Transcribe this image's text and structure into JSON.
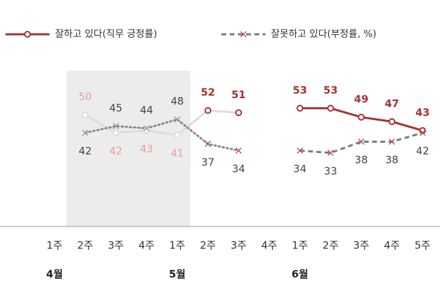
{
  "chart_data": {
    "type": "line",
    "categories": [
      "1주",
      "2주",
      "3주",
      "4주",
      "1주",
      "2주",
      "3주",
      "4주",
      "1주",
      "2주",
      "3주",
      "4주",
      "5주"
    ],
    "months": [
      "4월",
      null,
      null,
      null,
      "5월",
      null,
      null,
      null,
      "6월",
      null,
      null,
      null,
      null
    ],
    "series": [
      {
        "name": "잘하고 있다(직무 긍정률)",
        "color": "#a83232",
        "values": [
          null,
          50,
          42,
          43,
          41,
          52,
          51,
          null,
          53,
          53,
          49,
          47,
          43
        ]
      },
      {
        "name": "잘못하고 있다(부정률, %)",
        "color": "#7a7a7a",
        "values": [
          null,
          42,
          45,
          44,
          48,
          37,
          34,
          null,
          34,
          33,
          38,
          38,
          42
        ]
      }
    ],
    "ylim": [
      0,
      100
    ]
  }
}
